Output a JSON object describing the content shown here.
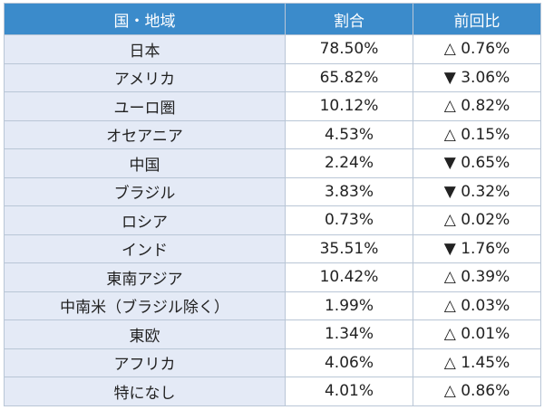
{
  "headers": [
    "国・地域",
    "割合",
    "前回比"
  ],
  "rows": [
    [
      "日本",
      "78.50%",
      "△ 0.76%"
    ],
    [
      "アメリカ",
      "65.82%",
      "▼ 3.06%"
    ],
    [
      "ユーロ圏",
      "10.12%",
      "△ 0.82%"
    ],
    [
      "オセアニア",
      "4.53%",
      "△ 0.15%"
    ],
    [
      "中国",
      "2.24%",
      "▼ 0.65%"
    ],
    [
      "ブラジル",
      "3.83%",
      "▼ 0.32%"
    ],
    [
      "ロシア",
      "0.73%",
      "△ 0.02%"
    ],
    [
      "インド",
      "35.51%",
      "▼ 1.76%"
    ],
    [
      "東南アジア",
      "10.42%",
      "△ 0.39%"
    ],
    [
      "中南米（ブラジル除く）",
      "1.99%",
      "△ 0.03%"
    ],
    [
      "東欧",
      "1.34%",
      "△ 0.01%"
    ],
    [
      "アフリカ",
      "4.06%",
      "△ 1.45%"
    ],
    [
      "特になし",
      "4.01%",
      "△ 0.86%"
    ]
  ]
}
